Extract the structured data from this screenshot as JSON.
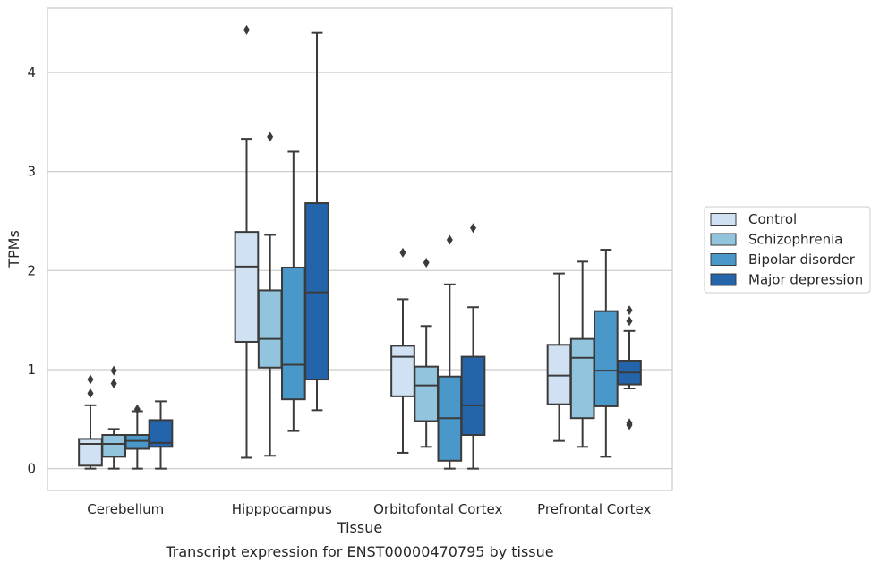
{
  "colors": {
    "Control": "#cfe1f2",
    "Schizophrenia": "#93c4de",
    "Bipolar disorder": "#4a98c9",
    "Major depression": "#2364aa",
    "line": "#3b3b3b",
    "grid": "#cccccc",
    "frame": "#cccccc"
  },
  "chart_data": {
    "type": "box",
    "title": "",
    "caption": "Transcript expression for ENST00000470795 by tissue",
    "xlabel": "Tissue",
    "ylabel": "TPMs",
    "ylim": [
      -0.22,
      4.65
    ],
    "yticks": [
      0,
      1,
      2,
      3,
      4
    ],
    "grid": "horizontal",
    "legend_position": "right",
    "categories": [
      "Cerebellum",
      "Hipppocampus",
      "Orbitofontal Cortex",
      "Prefrontal Cortex"
    ],
    "series": [
      {
        "name": "Control",
        "boxes": [
          {
            "whislo": 0.0,
            "q1": 0.03,
            "med": 0.25,
            "q3": 0.3,
            "whishi": 0.64,
            "fliers": [
              0.76,
              0.9
            ]
          },
          {
            "whislo": 0.11,
            "q1": 1.28,
            "med": 2.04,
            "q3": 2.39,
            "whishi": 3.33,
            "fliers": [
              4.43
            ]
          },
          {
            "whislo": 0.16,
            "q1": 0.73,
            "med": 1.13,
            "q3": 1.24,
            "whishi": 1.71,
            "fliers": [
              2.18
            ]
          },
          {
            "whislo": 0.28,
            "q1": 0.65,
            "med": 0.94,
            "q3": 1.25,
            "whishi": 1.97,
            "fliers": []
          }
        ]
      },
      {
        "name": "Schizophrenia",
        "boxes": [
          {
            "whislo": 0.0,
            "q1": 0.12,
            "med": 0.25,
            "q3": 0.34,
            "whishi": 0.4,
            "fliers": [
              0.86,
              0.99
            ]
          },
          {
            "whislo": 0.13,
            "q1": 1.02,
            "med": 1.31,
            "q3": 1.8,
            "whishi": 2.36,
            "fliers": [
              3.35
            ]
          },
          {
            "whislo": 0.22,
            "q1": 0.48,
            "med": 0.84,
            "q3": 1.03,
            "whishi": 1.44,
            "fliers": [
              2.08
            ]
          },
          {
            "whislo": 0.22,
            "q1": 0.51,
            "med": 1.12,
            "q3": 1.31,
            "whishi": 2.09,
            "fliers": []
          }
        ]
      },
      {
        "name": "Bipolar disorder",
        "boxes": [
          {
            "whislo": 0.0,
            "q1": 0.2,
            "med": 0.28,
            "q3": 0.34,
            "whishi": 0.58,
            "fliers": [
              0.6
            ]
          },
          {
            "whislo": 0.38,
            "q1": 0.7,
            "med": 1.05,
            "q3": 2.03,
            "whishi": 3.2,
            "fliers": []
          },
          {
            "whislo": 0.0,
            "q1": 0.08,
            "med": 0.51,
            "q3": 0.93,
            "whishi": 1.86,
            "fliers": [
              2.31
            ]
          },
          {
            "whislo": 0.12,
            "q1": 0.63,
            "med": 0.99,
            "q3": 1.59,
            "whishi": 2.21,
            "fliers": []
          }
        ]
      },
      {
        "name": "Major depression",
        "boxes": [
          {
            "whislo": 0.0,
            "q1": 0.22,
            "med": 0.26,
            "q3": 0.49,
            "whishi": 0.68,
            "fliers": []
          },
          {
            "whislo": 0.59,
            "q1": 0.9,
            "med": 1.78,
            "q3": 2.68,
            "whishi": 4.4,
            "fliers": []
          },
          {
            "whislo": 0.0,
            "q1": 0.34,
            "med": 0.64,
            "q3": 1.13,
            "whishi": 1.63,
            "fliers": [
              2.43
            ]
          },
          {
            "whislo": 0.81,
            "q1": 0.85,
            "med": 0.97,
            "q3": 1.09,
            "whishi": 1.39,
            "fliers": [
              1.49,
              1.6,
              0.44,
              0.46
            ]
          }
        ]
      }
    ]
  }
}
